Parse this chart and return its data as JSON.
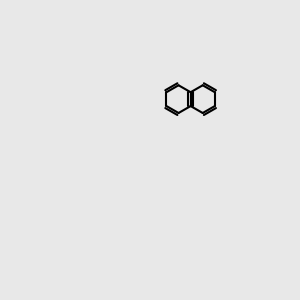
{
  "background_color": "#e8e8e8",
  "bond_color": "#000000",
  "n_color": "#0000ff",
  "o_color": "#ff0000",
  "f_color": "#cc44cc",
  "h_color": "#008888",
  "figsize": [
    3.0,
    3.0
  ],
  "dpi": 100
}
